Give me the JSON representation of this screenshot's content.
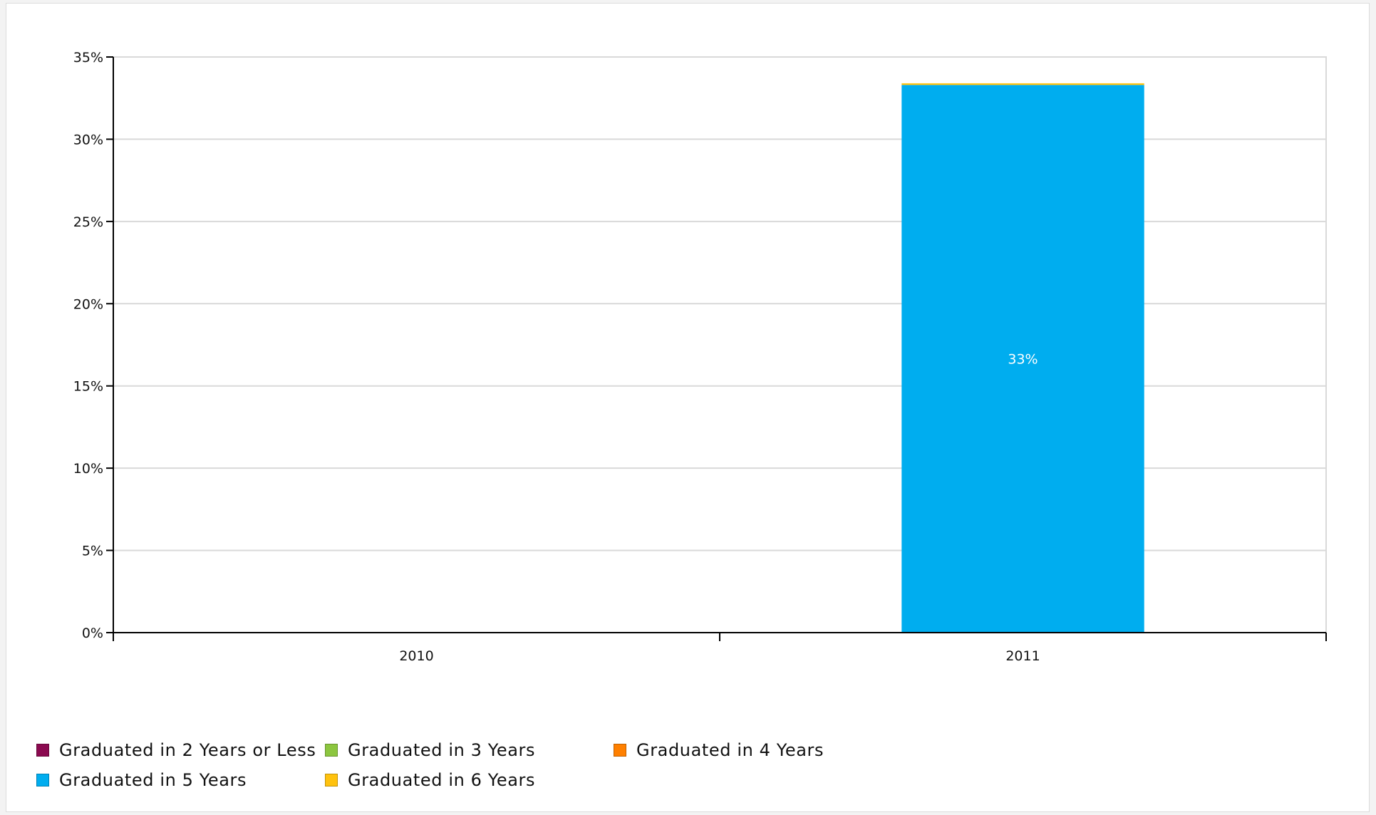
{
  "chart_data": {
    "type": "bar",
    "stacked": true,
    "title": "",
    "categories": [
      "2010",
      "2011"
    ],
    "yaxis": {
      "min": 0,
      "max": 35,
      "step": 5,
      "tick_labels": [
        "0%",
        "5%",
        "10%",
        "15%",
        "20%",
        "25%",
        "30%",
        "35%"
      ],
      "grid": true
    },
    "series": [
      {
        "name": "Graduated in 2 Years or Less",
        "color": "#8b0a50",
        "values": [
          0,
          0
        ]
      },
      {
        "name": "Graduated in 3 Years",
        "color": "#8cc63f",
        "values": [
          0,
          0
        ]
      },
      {
        "name": "Graduated in 4 Years",
        "color": "#ff8000",
        "values": [
          0,
          0
        ]
      },
      {
        "name": "Graduated in 5 Years",
        "color": "#00adef",
        "values": [
          0,
          33.3
        ]
      },
      {
        "name": "Graduated in 6 Years",
        "color": "#ffc20e",
        "values": [
          0,
          0.1
        ]
      }
    ],
    "data_labels": [
      {
        "category": "2011",
        "series": "Graduated in 5 Years",
        "text": "33%"
      }
    ],
    "legend_position": "bottom-left"
  }
}
